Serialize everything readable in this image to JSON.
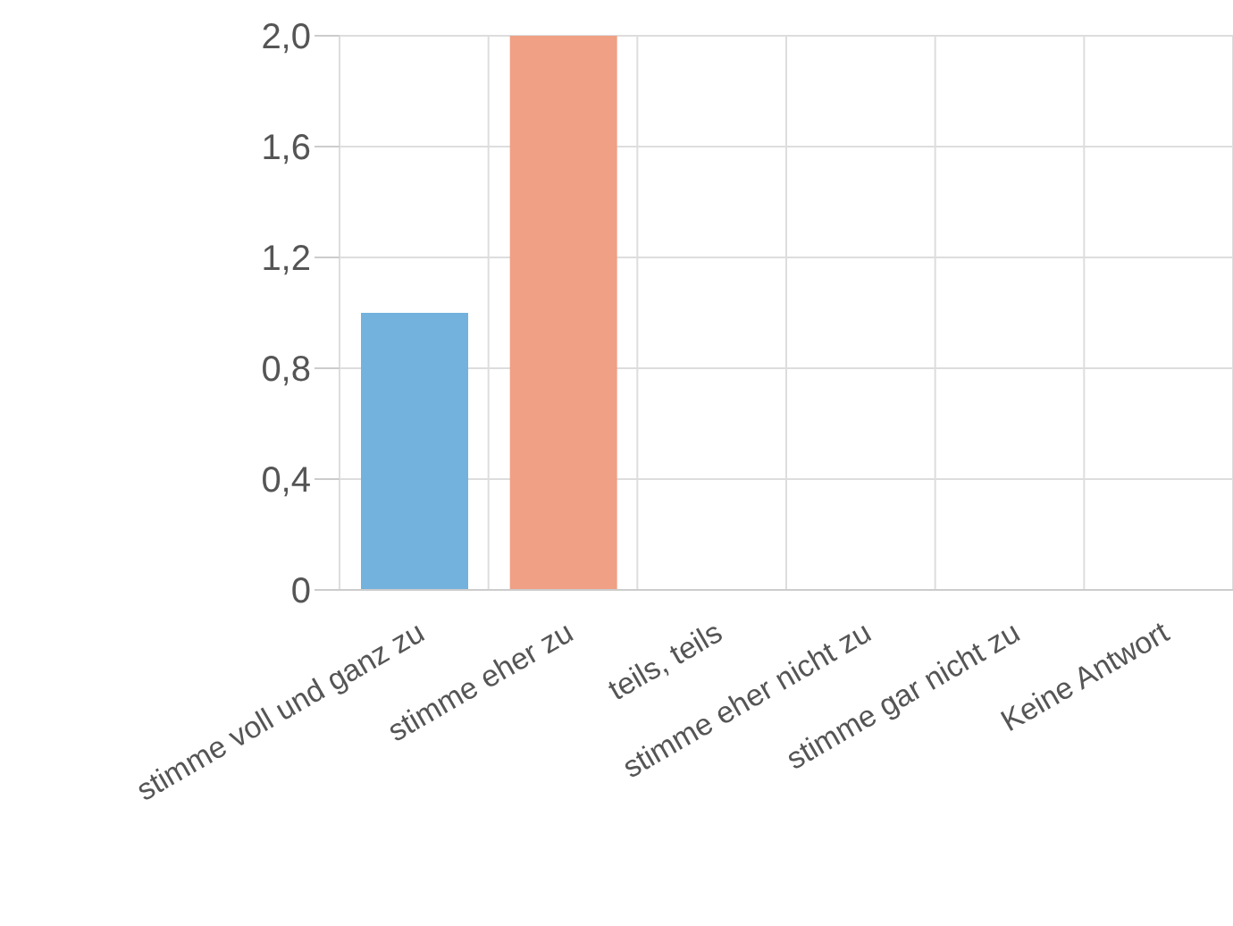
{
  "chart_data": {
    "type": "bar",
    "categories": [
      "stimme voll und ganz zu",
      "stimme eher zu",
      "teils, teils",
      "stimme eher nicht zu",
      "stimme gar nicht zu",
      "Keine Antwort"
    ],
    "values": [
      1,
      2,
      0,
      0,
      0,
      0
    ],
    "colors": [
      "#72b2dd",
      "#f0a084",
      null,
      null,
      null,
      null
    ],
    "ylim": [
      0,
      2
    ],
    "yticks": [
      0,
      {
        "value": 0.4,
        "label": "0,4"
      },
      {
        "value": 0.8,
        "label": "0,8"
      },
      {
        "value": 1.2,
        "label": "1,2"
      },
      {
        "value": 1.6,
        "label": "1,6"
      },
      {
        "value": 2,
        "label": "2,0"
      }
    ],
    "grid": true
  }
}
